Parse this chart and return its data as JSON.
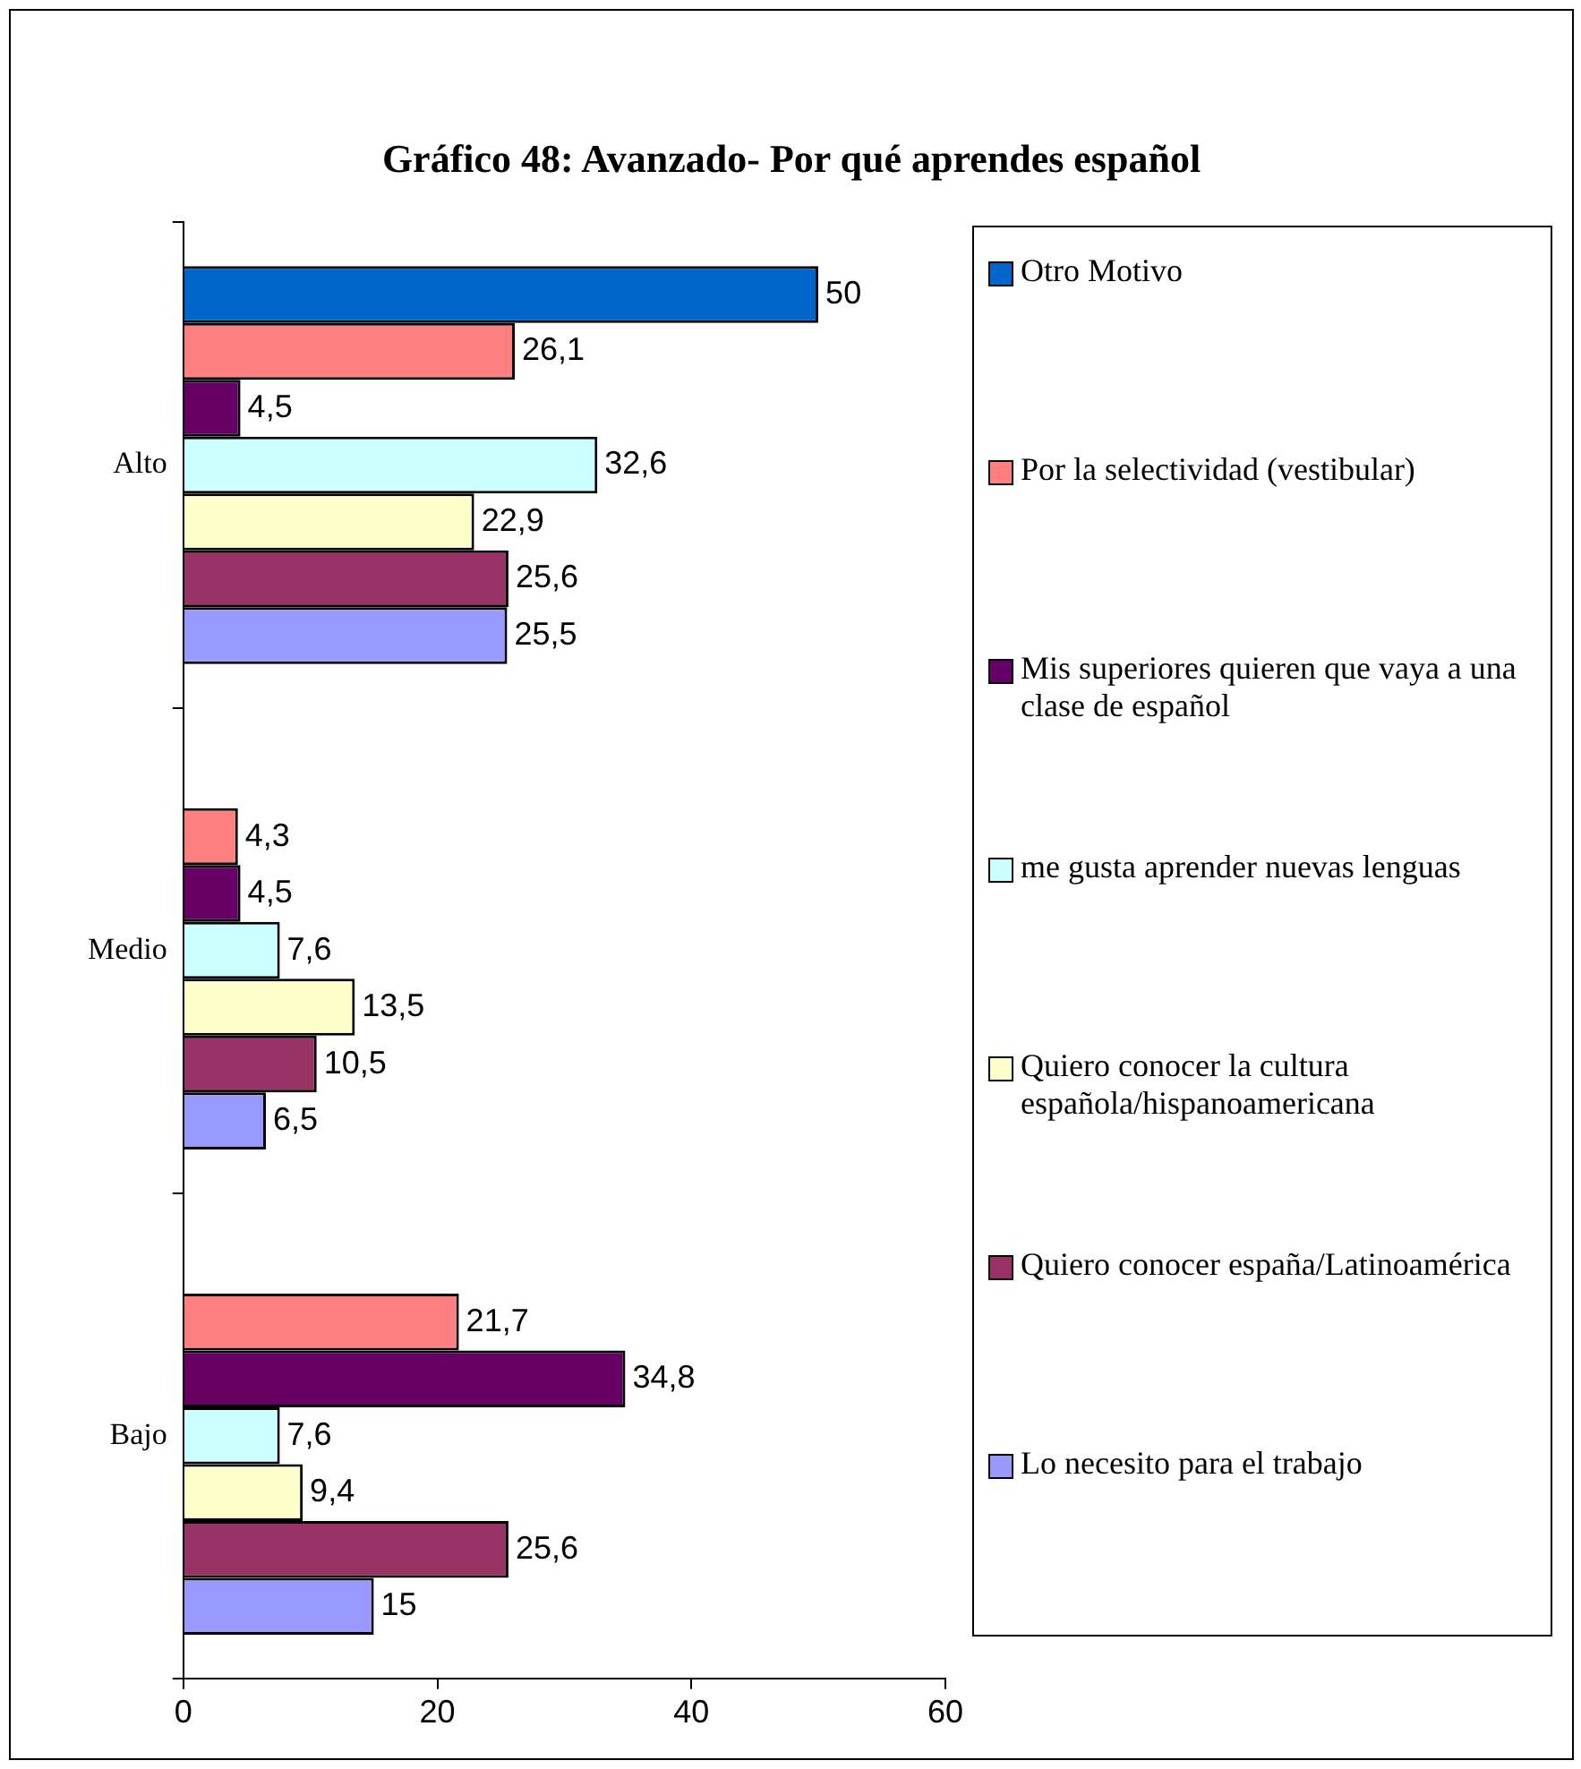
{
  "chart_data": {
    "type": "bar",
    "orientation": "horizontal",
    "title": "Gráfico 48: Avanzado- Por qué aprendes español",
    "categories": [
      "Alto",
      "Medio",
      "Bajo"
    ],
    "xlim": [
      0,
      60
    ],
    "xticks": [
      0,
      20,
      40,
      60
    ],
    "grid": false,
    "legend": "right",
    "series": [
      {
        "name": "Otro Motivo",
        "color": "#0066cc",
        "values": [
          50,
          null,
          null
        ],
        "value_labels": [
          "50",
          null,
          null
        ]
      },
      {
        "name": "Por la selectividad (vestibular)",
        "color": "#ff8080",
        "values": [
          26.1,
          4.3,
          21.7
        ],
        "value_labels": [
          "26,1",
          "4,3",
          "21,7"
        ]
      },
      {
        "name": "Mis superiores quieren que vaya a una clase de español",
        "color": "#660066",
        "values": [
          4.5,
          4.5,
          34.8
        ],
        "value_labels": [
          "4,5",
          "4,5",
          "34,8"
        ]
      },
      {
        "name": "me gusta aprender nuevas lenguas",
        "color": "#ccffff",
        "values": [
          32.6,
          7.6,
          7.6
        ],
        "value_labels": [
          "32,6",
          "7,6",
          "7,6"
        ]
      },
      {
        "name": "Quiero conocer la cultura española/hispanoamericana",
        "color": "#ffffcc",
        "values": [
          22.9,
          13.5,
          9.4
        ],
        "value_labels": [
          "22,9",
          "13,5",
          "9,4"
        ]
      },
      {
        "name": "Quiero conocer españa/Latinoamérica",
        "color": "#993366",
        "values": [
          25.6,
          10.5,
          25.6
        ],
        "value_labels": [
          "25,6",
          "10,5",
          "25,6"
        ]
      },
      {
        "name": "Lo necesito para el trabajo",
        "color": "#9999ff",
        "values": [
          25.5,
          6.5,
          15
        ],
        "value_labels": [
          "25,5",
          "6,5",
          "15"
        ]
      }
    ]
  }
}
